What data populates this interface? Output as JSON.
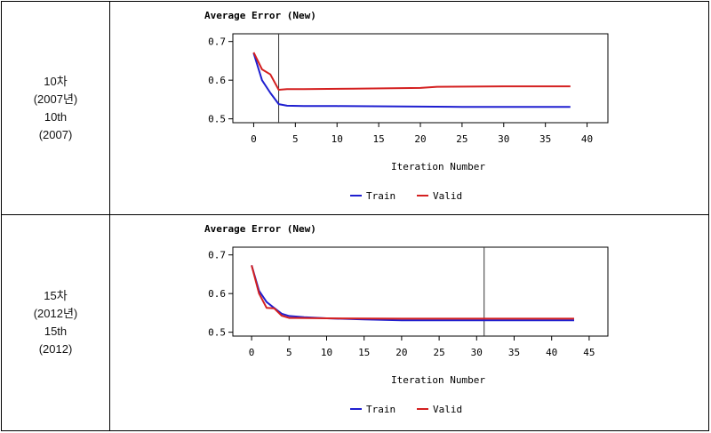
{
  "rows": [
    {
      "label_lines": [
        "10차",
        "(2007년)",
        "10th",
        "(2007)"
      ]
    },
    {
      "label_lines": [
        "15차",
        "(2012년)",
        "15th",
        "(2012)"
      ]
    }
  ],
  "chart_data": [
    {
      "type": "line",
      "title": "Average Error (New)",
      "xlabel": "Iteration Number",
      "ylabel": "",
      "xlim": [
        -2.5,
        42.5
      ],
      "ylim": [
        0.49,
        0.72
      ],
      "xticks": [
        0,
        5,
        10,
        15,
        20,
        25,
        30,
        35,
        40
      ],
      "yticks": [
        0.5,
        0.6,
        0.7
      ],
      "ytick_labels": [
        "0.5",
        "0.6",
        "0.7"
      ],
      "selected_iteration": 3,
      "legend": "bottom-center",
      "colors": {
        "Train": "#1f1fd0",
        "Valid": "#d42020"
      },
      "series": [
        {
          "name": "Train",
          "x": [
            0,
            1,
            2,
            3,
            4,
            6,
            10,
            18,
            25,
            38
          ],
          "y": [
            0.67,
            0.6,
            0.567,
            0.538,
            0.534,
            0.533,
            0.533,
            0.532,
            0.531,
            0.531
          ]
        },
        {
          "name": "Valid",
          "x": [
            0,
            1,
            2,
            3,
            4,
            6,
            12,
            20,
            22,
            30,
            38
          ],
          "y": [
            0.672,
            0.628,
            0.615,
            0.575,
            0.577,
            0.577,
            0.578,
            0.58,
            0.583,
            0.584,
            0.584
          ]
        }
      ]
    },
    {
      "type": "line",
      "title": "Average Error (New)",
      "xlabel": "Iteration Number",
      "ylabel": "",
      "xlim": [
        -2.5,
        47.5
      ],
      "ylim": [
        0.49,
        0.72
      ],
      "xticks": [
        0,
        5,
        10,
        15,
        20,
        25,
        30,
        35,
        40,
        45
      ],
      "yticks": [
        0.5,
        0.6,
        0.7
      ],
      "ytick_labels": [
        "0.5",
        "0.6",
        "0.7"
      ],
      "selected_iteration": 31,
      "legend": "bottom-center",
      "colors": {
        "Train": "#1f1fd0",
        "Valid": "#d42020"
      },
      "series": [
        {
          "name": "Train",
          "x": [
            0,
            1,
            2,
            3,
            4,
            5,
            7,
            10,
            15,
            20,
            43
          ],
          "y": [
            0.673,
            0.607,
            0.578,
            0.563,
            0.548,
            0.542,
            0.539,
            0.536,
            0.533,
            0.531,
            0.531
          ]
        },
        {
          "name": "Valid",
          "x": [
            0,
            1,
            2,
            3,
            4,
            5,
            6,
            10,
            20,
            43
          ],
          "y": [
            0.673,
            0.6,
            0.563,
            0.562,
            0.543,
            0.537,
            0.537,
            0.536,
            0.535,
            0.535
          ]
        }
      ]
    }
  ]
}
